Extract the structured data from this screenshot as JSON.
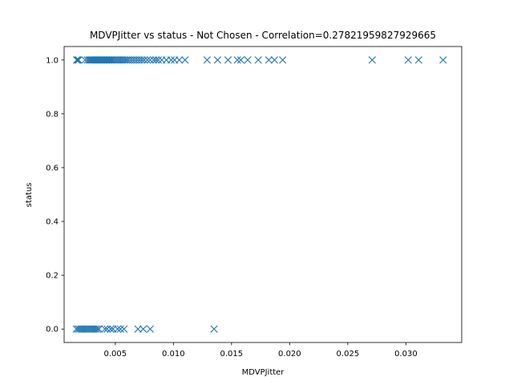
{
  "chart_data": {
    "type": "scatter",
    "title": "MDVPJitter vs status - Not Chosen - Correlation=0.27821959827929665",
    "xlabel": "MDVPJitter",
    "ylabel": "status",
    "xlim": [
      0.0006,
      0.0348
    ],
    "ylim": [
      -0.05,
      1.05
    ],
    "xticks": [
      0.005,
      0.01,
      0.015,
      0.02,
      0.025,
      0.03
    ],
    "xtick_labels": [
      "0.005",
      "0.010",
      "0.015",
      "0.020",
      "0.025",
      "0.030"
    ],
    "yticks": [
      0.0,
      0.2,
      0.4,
      0.6,
      0.8,
      1.0
    ],
    "ytick_labels": [
      "0.0",
      "0.2",
      "0.4",
      "0.6",
      "0.8",
      "1.0"
    ],
    "grid": false,
    "marker": "x",
    "color": "#1f77b4",
    "series": [
      {
        "points": [
          [
            0.00168,
            1
          ],
          [
            0.00175,
            1
          ],
          [
            0.00185,
            1
          ],
          [
            0.0024,
            1
          ],
          [
            0.0026,
            1
          ],
          [
            0.00275,
            1
          ],
          [
            0.00285,
            1
          ],
          [
            0.00295,
            1
          ],
          [
            0.00305,
            1
          ],
          [
            0.00315,
            1
          ],
          [
            0.00325,
            1
          ],
          [
            0.00335,
            1
          ],
          [
            0.00345,
            1
          ],
          [
            0.00355,
            1
          ],
          [
            0.00365,
            1
          ],
          [
            0.00375,
            1
          ],
          [
            0.00385,
            1
          ],
          [
            0.00395,
            1
          ],
          [
            0.00405,
            1
          ],
          [
            0.00415,
            1
          ],
          [
            0.00425,
            1
          ],
          [
            0.00435,
            1
          ],
          [
            0.00445,
            1
          ],
          [
            0.00455,
            1
          ],
          [
            0.00465,
            1
          ],
          [
            0.00475,
            1
          ],
          [
            0.0049,
            1
          ],
          [
            0.00505,
            1
          ],
          [
            0.0052,
            1
          ],
          [
            0.00535,
            1
          ],
          [
            0.0055,
            1
          ],
          [
            0.00565,
            1
          ],
          [
            0.0058,
            1
          ],
          [
            0.00595,
            1
          ],
          [
            0.0061,
            1
          ],
          [
            0.0063,
            1
          ],
          [
            0.0065,
            1
          ],
          [
            0.0067,
            1
          ],
          [
            0.0069,
            1
          ],
          [
            0.0071,
            1
          ],
          [
            0.0073,
            1
          ],
          [
            0.0075,
            1
          ],
          [
            0.00775,
            1
          ],
          [
            0.008,
            1
          ],
          [
            0.0083,
            1
          ],
          [
            0.0085,
            1
          ],
          [
            0.0087,
            1
          ],
          [
            0.009,
            1
          ],
          [
            0.0094,
            1
          ],
          [
            0.0098,
            1
          ],
          [
            0.0101,
            1
          ],
          [
            0.0105,
            1
          ],
          [
            0.011,
            1
          ],
          [
            0.0129,
            1
          ],
          [
            0.0138,
            1
          ],
          [
            0.0147,
            1
          ],
          [
            0.0155,
            1
          ],
          [
            0.0158,
            1
          ],
          [
            0.0164,
            1
          ],
          [
            0.0173,
            1
          ],
          [
            0.0182,
            1
          ],
          [
            0.0187,
            1
          ],
          [
            0.0194,
            1
          ],
          [
            0.0271,
            1
          ],
          [
            0.0302,
            1
          ],
          [
            0.0311,
            1
          ],
          [
            0.0332,
            1
          ],
          [
            0.00165,
            0
          ],
          [
            0.0018,
            0
          ],
          [
            0.00195,
            0
          ],
          [
            0.0021,
            0
          ],
          [
            0.00225,
            0
          ],
          [
            0.0024,
            0
          ],
          [
            0.00255,
            0
          ],
          [
            0.0027,
            0
          ],
          [
            0.00285,
            0
          ],
          [
            0.003,
            0
          ],
          [
            0.00315,
            0
          ],
          [
            0.0033,
            0
          ],
          [
            0.00345,
            0
          ],
          [
            0.0036,
            0
          ],
          [
            0.0041,
            0
          ],
          [
            0.0043,
            0
          ],
          [
            0.0046,
            0
          ],
          [
            0.0048,
            0
          ],
          [
            0.0052,
            0
          ],
          [
            0.00545,
            0
          ],
          [
            0.00575,
            0
          ],
          [
            0.00695,
            0
          ],
          [
            0.0074,
            0
          ],
          [
            0.008,
            0
          ],
          [
            0.0135,
            0
          ]
        ]
      }
    ]
  }
}
